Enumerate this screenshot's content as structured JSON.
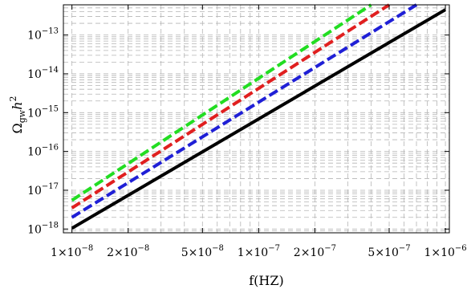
{
  "chart_data": {
    "type": "line",
    "title": "",
    "xlabel": "f(HZ)",
    "ylabel_base": "Ω",
    "ylabel_sub": "gw",
    "ylabel_mid": "h",
    "ylabel_sup": "2",
    "xscale": "log",
    "yscale": "log",
    "xlim": [
      9e-09,
      1.05e-06
    ],
    "ylim": [
      8e-19,
      6e-13
    ],
    "grid": true,
    "grid_style": "dashed",
    "legend": "none",
    "x_ticks": [
      {
        "value": 1e-08,
        "mant": "1×10",
        "exp": "−8"
      },
      {
        "value": 2e-08,
        "mant": "2×10",
        "exp": "−8"
      },
      {
        "value": 5e-08,
        "mant": "5×10",
        "exp": "−8"
      },
      {
        "value": 1e-07,
        "mant": "1×10",
        "exp": "−7"
      },
      {
        "value": 2e-07,
        "mant": "2×10",
        "exp": "−7"
      },
      {
        "value": 5e-07,
        "mant": "5×10",
        "exp": "−7"
      },
      {
        "value": 1e-06,
        "mant": "1×10",
        "exp": "−6"
      }
    ],
    "y_ticks": [
      {
        "value": 1e-18,
        "mant": "10",
        "exp": "−18"
      },
      {
        "value": 1e-17,
        "mant": "10",
        "exp": "−17"
      },
      {
        "value": 1e-16,
        "mant": "10",
        "exp": "−16"
      },
      {
        "value": 1e-15,
        "mant": "10",
        "exp": "−15"
      },
      {
        "value": 1e-14,
        "mant": "10",
        "exp": "−14"
      },
      {
        "value": 1e-13,
        "mant": "10",
        "exp": "−13"
      }
    ],
    "series": [
      {
        "color": "#000000",
        "style": "solid",
        "x": [
          1e-08,
          1e-06
        ],
        "y": [
          1.05e-18,
          4.5e-13
        ]
      },
      {
        "color": "#1f1fd6",
        "style": "dashed",
        "x": [
          1e-08,
          7e-07
        ],
        "y": [
          2e-18,
          6e-13
        ]
      },
      {
        "color": "#e01f1f",
        "style": "dashed",
        "x": [
          1e-08,
          5e-07
        ],
        "y": [
          3.5e-18,
          6e-13
        ]
      },
      {
        "color": "#22dd22",
        "style": "dashed",
        "x": [
          1e-08,
          4e-07
        ],
        "y": [
          5.5e-18,
          6e-13
        ]
      }
    ]
  }
}
